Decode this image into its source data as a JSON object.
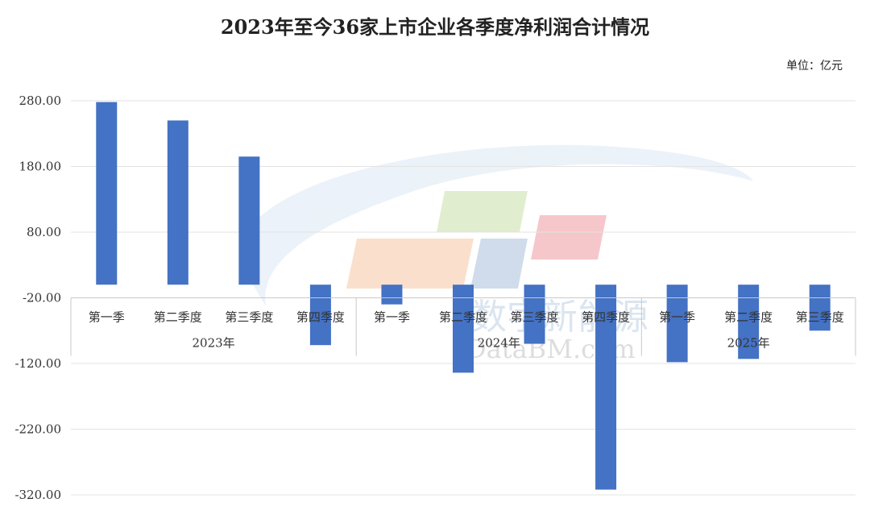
{
  "title": "2023年至今36家上市企业各季度净利润合计情况",
  "unit_label": "单位：亿元",
  "watermark": {
    "text_cn": "数字新能源",
    "text_en": "DataBM.com"
  },
  "chart_data": {
    "type": "bar",
    "categories": [
      "第一季",
      "第二季度",
      "第三季度",
      "第四季度",
      "第一季",
      "第二季度",
      "第三季度",
      "第四季度",
      "第一季",
      "第二季度",
      "第三季度"
    ],
    "groups": [
      {
        "label": "2023年",
        "count": 4
      },
      {
        "label": "2024年",
        "count": 4
      },
      {
        "label": "2025年",
        "count": 3
      }
    ],
    "values": [
      278,
      250,
      195,
      -92,
      -30,
      -134,
      -90,
      -312,
      -118,
      -113,
      -70
    ],
    "yticks": [
      "280.00",
      "180.00",
      "80.00",
      "-20.00",
      "-120.00",
      "-220.00",
      "-320.00"
    ],
    "ytick_values": [
      280,
      180,
      80,
      -20,
      -120,
      -220,
      -320
    ],
    "ylim": [
      -320,
      280
    ],
    "bar_color": "#4472C4",
    "grid": true,
    "legend": "none"
  }
}
